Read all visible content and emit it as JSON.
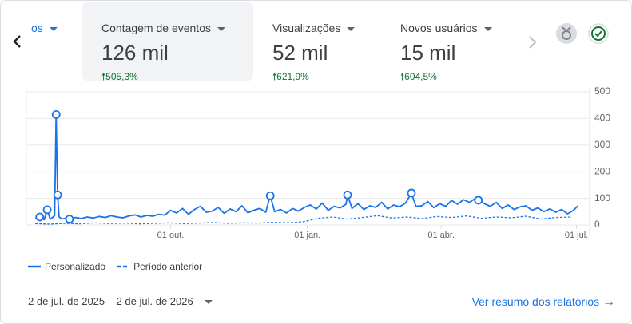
{
  "tabs": [
    {
      "label": "os"
    },
    {
      "label": "Contagem de eventos",
      "value": "126 mil",
      "change": "505,3%"
    },
    {
      "label": "Visualizações",
      "value": "52 mil",
      "change": "621,9%"
    },
    {
      "label": "Novos usuários",
      "value": "15 mil",
      "change": "604,5%"
    }
  ],
  "chart_data": {
    "type": "line",
    "xlim": [
      -6,
      368
    ],
    "xticks": [
      {
        "value": 91,
        "label": "01 out."
      },
      {
        "value": 183,
        "label": "01 jan."
      },
      {
        "value": 273,
        "label": "01 abr."
      },
      {
        "value": 364,
        "label": "01 jul."
      }
    ],
    "ylim": [
      0,
      500
    ],
    "yticks": [
      0,
      100,
      200,
      300,
      400,
      500
    ],
    "grid": true,
    "series": [
      {
        "name": "Personalizado",
        "color": "#1a73e8",
        "style": "solid",
        "x": [
          0,
          3,
          6,
          8,
          10,
          12,
          13,
          14,
          15,
          16,
          18,
          20,
          23,
          27,
          31,
          35,
          39,
          43,
          47,
          51,
          55,
          59,
          63,
          67,
          71,
          75,
          79,
          83,
          87,
          91,
          95,
          99,
          103,
          107,
          111,
          115,
          119,
          123,
          127,
          131,
          135,
          139,
          143,
          147,
          151,
          155,
          158,
          161,
          165,
          169,
          173,
          177,
          181,
          185,
          189,
          193,
          197,
          201,
          205,
          209,
          210,
          213,
          217,
          221,
          225,
          229,
          233,
          237,
          241,
          245,
          249,
          253,
          256,
          260,
          264,
          268,
          272,
          276,
          280,
          284,
          288,
          292,
          296,
          298,
          302,
          306,
          310,
          314,
          318,
          322,
          326,
          330,
          334,
          338,
          342,
          346,
          350,
          354,
          358,
          362,
          365
        ],
        "values": [
          25,
          30,
          20,
          57,
          22,
          30,
          35,
          415,
          113,
          30,
          22,
          25,
          22,
          28,
          24,
          30,
          26,
          32,
          28,
          35,
          30,
          27,
          34,
          38,
          30,
          36,
          33,
          40,
          37,
          55,
          45,
          62,
          40,
          58,
          70,
          48,
          52,
          66,
          44,
          60,
          50,
          72,
          46,
          55,
          62,
          48,
          110,
          50,
          58,
          45,
          62,
          52,
          66,
          75,
          60,
          82,
          55,
          70,
          64,
          78,
          113,
          62,
          80,
          58,
          72,
          66,
          85,
          60,
          75,
          68,
          82,
          120,
          70,
          72,
          88,
          65,
          80,
          70,
          92,
          78,
          95,
          85,
          100,
          93,
          80,
          70,
          85,
          62,
          75,
          58,
          68,
          72,
          55,
          64,
          50,
          60,
          48,
          58,
          42,
          55,
          72
        ]
      },
      {
        "name": "Período anterior",
        "color": "#1a73e8",
        "style": "dashed",
        "x": [
          0,
          10,
          20,
          30,
          40,
          50,
          60,
          70,
          80,
          90,
          100,
          110,
          120,
          130,
          140,
          150,
          160,
          170,
          180,
          190,
          200,
          210,
          220,
          230,
          240,
          250,
          260,
          270,
          280,
          290,
          300,
          310,
          320,
          330,
          340,
          350,
          360
        ],
        "values": [
          5,
          3,
          6,
          4,
          8,
          5,
          7,
          4,
          6,
          8,
          5,
          7,
          9,
          6,
          8,
          7,
          10,
          8,
          12,
          25,
          30,
          22,
          28,
          35,
          26,
          30,
          24,
          32,
          28,
          34,
          25,
          30,
          27,
          33,
          22,
          28,
          30
        ]
      }
    ],
    "markers": [
      3,
      8,
      14,
      15,
      23,
      158,
      210,
      253,
      298
    ]
  },
  "footer": {
    "date_range": "2 de jul. de 2025 – 2 de jul. de 2026",
    "link": "Ver resumo dos relatórios"
  }
}
